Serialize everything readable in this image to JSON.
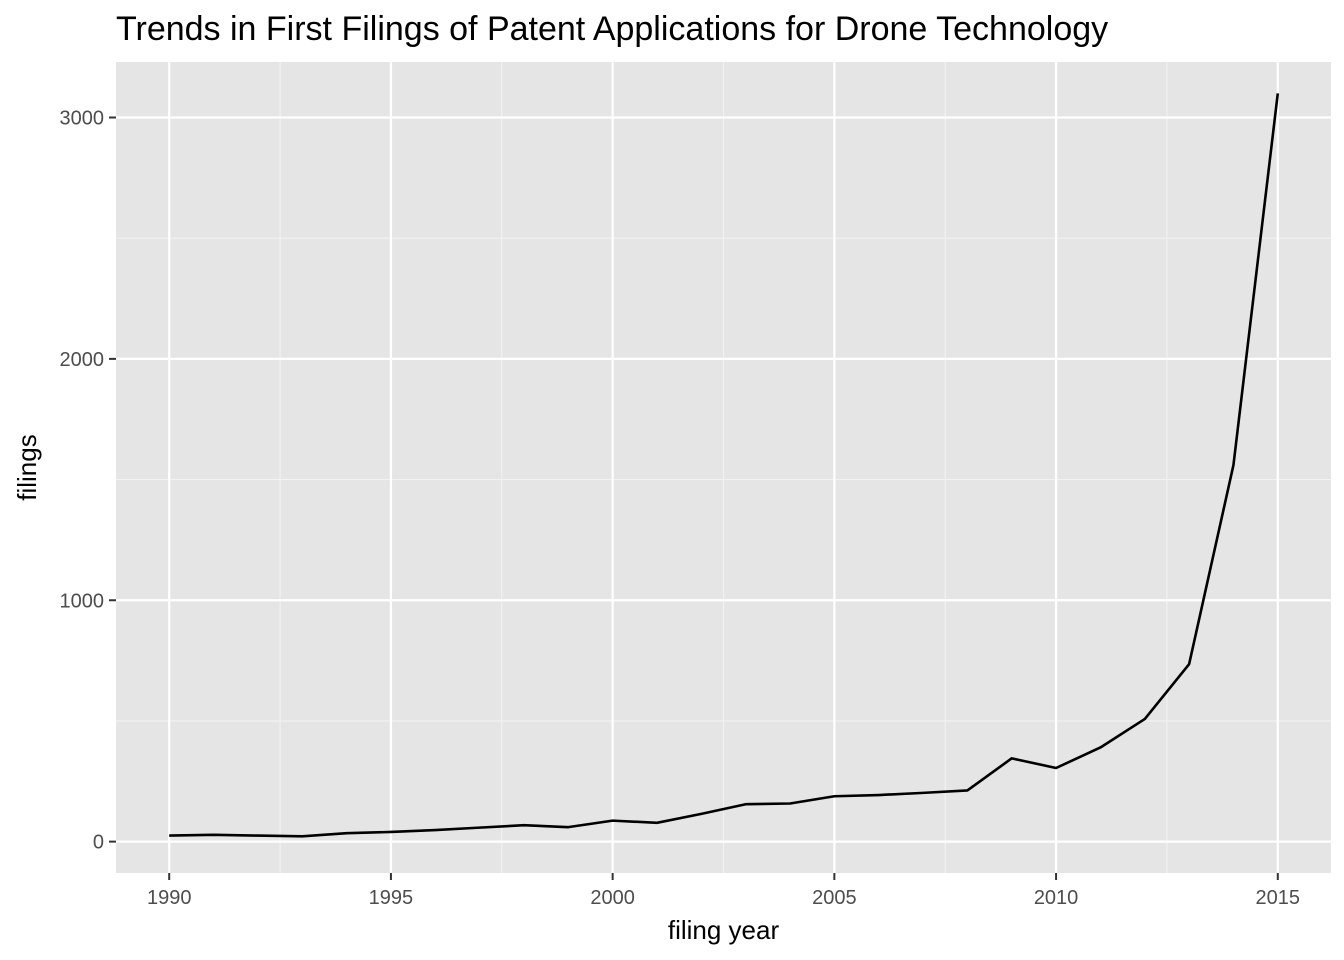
{
  "chart_data": {
    "type": "line",
    "title": "Trends in First Filings of Patent Applications for Drone Technology",
    "xlabel": "filing year",
    "ylabel": "filings",
    "x": [
      1990,
      1991,
      1992,
      1993,
      1994,
      1995,
      1996,
      1997,
      1998,
      1999,
      2000,
      2001,
      2002,
      2003,
      2004,
      2005,
      2006,
      2007,
      2008,
      2009,
      2010,
      2011,
      2012,
      2013,
      2014,
      2015
    ],
    "series": [
      {
        "values": [
          25,
          28,
          25,
          22,
          35,
          40,
          48,
          58,
          68,
          60,
          87,
          78,
          115,
          155,
          158,
          188,
          193,
          202,
          212,
          345,
          305,
          390,
          508,
          735,
          1560,
          3100
        ]
      }
    ],
    "xlim": [
      1988.8,
      2016.2
    ],
    "ylim": [
      -130,
      3230
    ],
    "x_ticks": [
      "1990",
      "1995",
      "2000",
      "2005",
      "2010",
      "2015"
    ],
    "y_ticks": [
      "0",
      "1000",
      "2000",
      "3000"
    ],
    "grid": true,
    "legend": "none",
    "colors": {
      "panel_background": "#e5e5e5",
      "grid_major": "#ffffff",
      "grid_minor": "#f2f2f2",
      "line": "#000000",
      "tick_text": "#4d4d4d",
      "tick_mark": "#333333"
    }
  }
}
